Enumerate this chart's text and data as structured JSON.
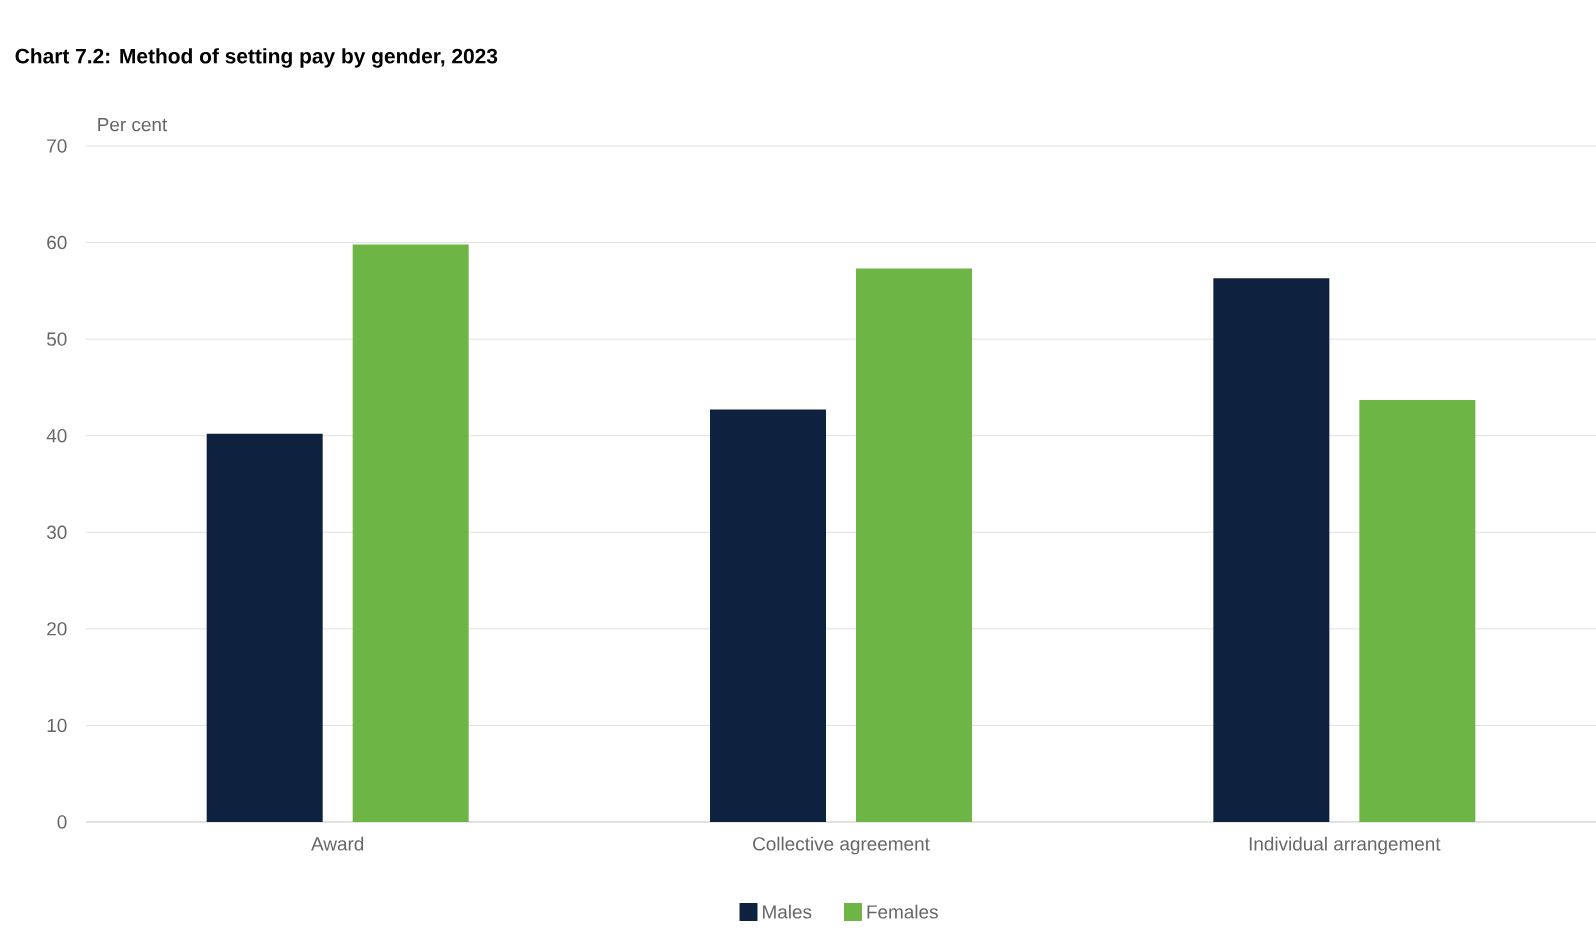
{
  "chart_data": {
    "type": "bar",
    "title": "Chart 7.2:  Method of setting pay by gender, 2023",
    "ylabel": "Per cent",
    "categories": [
      "Award",
      "Collective agreement",
      "Individual arrangement"
    ],
    "series": [
      {
        "name": "Males",
        "color": "#0e2240",
        "values": [
          40.2,
          42.7,
          56.3
        ]
      },
      {
        "name": "Females",
        "color": "#6db544",
        "values": [
          59.8,
          57.3,
          43.7
        ]
      }
    ],
    "ylim": [
      0,
      70
    ],
    "yticks": [
      0,
      10,
      20,
      30,
      40,
      50,
      60,
      70
    ],
    "grid": "y",
    "legend": "bottom"
  }
}
